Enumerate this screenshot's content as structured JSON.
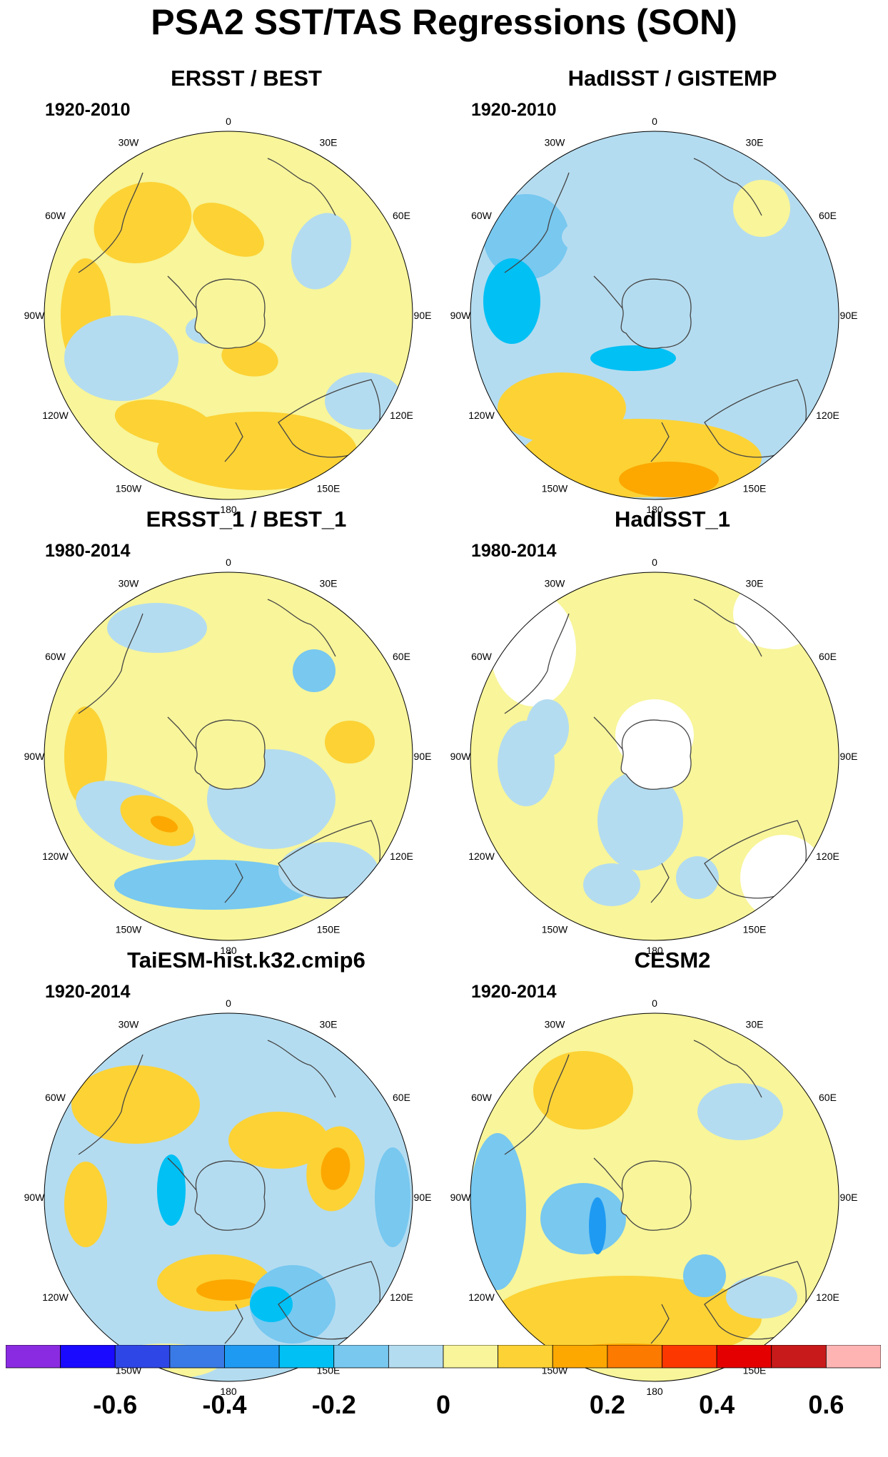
{
  "title": "PSA2 SST/TAS Regressions (SON)",
  "longitude_labels": [
    "0",
    "30E",
    "60E",
    "90E",
    "120E",
    "150E",
    "180",
    "150W",
    "120W",
    "90W",
    "60W",
    "30W"
  ],
  "colors": {
    "-0.7": "#8a2be2",
    "-0.6": "#1a0aff",
    "-0.5": "#2e46e6",
    "-0.4": "#3a7ae6",
    "-0.3": "#1e9af2",
    "-0.2": "#00c0f4",
    "-0.1": "#78c8f0",
    "-0.05": "#b4dcf0",
    "0.05": "#f8f59a",
    "0.1": "#fcd235",
    "0.2": "#fca800",
    "0.3": "#fc7a00",
    "0.4": "#fc3800",
    "0.5": "#e40000",
    "0.6": "#c81a1a",
    "0.7": "#ffb4b4",
    "land": "#ffffff",
    "missing": "#ffffff"
  },
  "chart_data": {
    "type": "heatmap",
    "projection": "south polar stereographic",
    "panels": [
      {
        "title": "ERSST / BEST",
        "period": "1920-2010"
      },
      {
        "title": "HadISST / GISTEMP",
        "period": "1920-2010"
      },
      {
        "title": "ERSST_1 / BEST_1",
        "period": "1980-2014"
      },
      {
        "title": "HadISST_1",
        "period": "1980-2014"
      },
      {
        "title": "TaiESM-hist.k32.cmip6",
        "period": "1920-2014"
      },
      {
        "title": "CESM2",
        "period": "1920-2014"
      }
    ],
    "colorbar": {
      "levels": [
        -0.7,
        -0.6,
        -0.5,
        -0.4,
        -0.3,
        -0.2,
        -0.1,
        -0.05,
        0.05,
        0.1,
        0.2,
        0.3,
        0.4,
        0.5,
        0.6,
        0.7
      ],
      "tick_labels": [
        "-0.6",
        "-0.4",
        "-0.2",
        "0",
        "0.2",
        "0.4",
        "0.6"
      ],
      "tick_values": [
        -0.6,
        -0.4,
        -0.2,
        0,
        0.2,
        0.4,
        0.6
      ],
      "colors": [
        "#8a2be2",
        "#1a0aff",
        "#2e46e6",
        "#3a7ae6",
        "#1e9af2",
        "#00c0f4",
        "#78c8f0",
        "#b4dcf0",
        "#f8f59a",
        "#fcd235",
        "#fca800",
        "#fc7a00",
        "#fc3800",
        "#e40000",
        "#c81a1a",
        "#ffb4b4"
      ]
    }
  }
}
